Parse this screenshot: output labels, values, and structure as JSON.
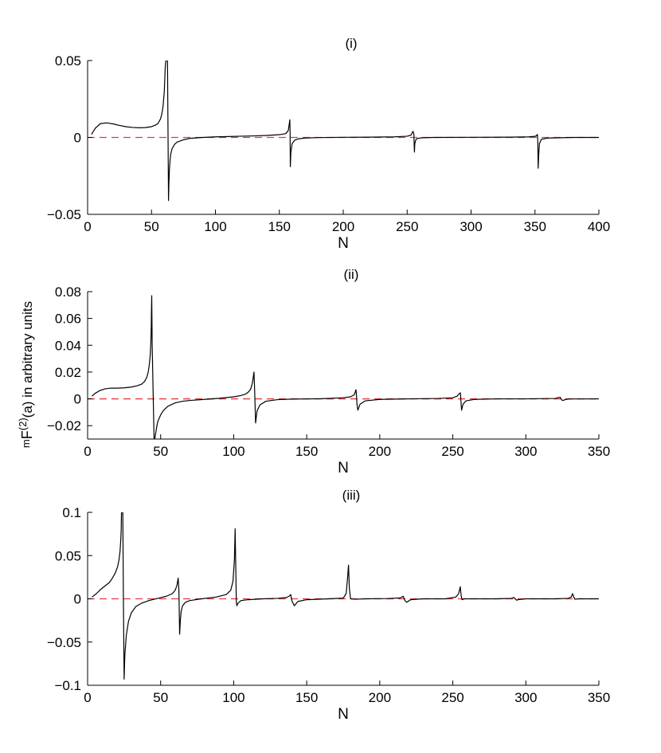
{
  "figure": {
    "ylabel": "mF(2)(a) in arbitrary units",
    "ylabel_parts": {
      "pre": "m",
      "main": "F",
      "sup": "(2)",
      "post": "(a) in arbitrary units"
    }
  },
  "chart_data": [
    {
      "type": "line",
      "title": "(i)",
      "xlabel": "N",
      "ylabel": "",
      "xlim": [
        0,
        400
      ],
      "ylim": [
        -0.05,
        0.05
      ],
      "xticks": [
        0,
        50,
        100,
        150,
        200,
        250,
        300,
        350,
        400
      ],
      "yticks": [
        -0.05,
        0,
        0.05
      ],
      "xtick_labels": [
        "0",
        "50",
        "100",
        "150",
        "200",
        "250",
        "300",
        "350",
        "400"
      ],
      "ytick_labels": [
        "−0.05",
        "0",
        "0.05"
      ],
      "grid": false,
      "series": [
        {
          "color": "#000000",
          "style": "solid",
          "x": [
            3,
            6,
            10,
            15,
            20,
            25,
            30,
            35,
            40,
            45,
            50,
            53,
            55,
            57,
            58,
            59,
            60,
            60.7,
            61.2,
            61.6,
            62.0,
            62.5,
            63.3,
            63.6,
            64,
            64.5,
            65,
            66,
            68,
            70,
            75,
            80,
            90,
            100,
            110,
            120,
            130,
            140,
            150,
            155,
            157,
            157.8,
            158.2,
            158.4,
            158.6,
            159,
            160,
            162,
            165,
            170,
            180,
            200,
            220,
            240,
            250,
            253,
            254.6,
            255.3,
            255.5,
            255.7,
            256,
            256.8,
            258,
            262,
            270,
            300,
            330,
            345,
            350,
            351.3,
            351.9,
            352.2,
            352.5,
            352.9,
            353.5,
            355,
            360,
            380,
            400
          ],
          "y": [
            0.002,
            0.006,
            0.009,
            0.0095,
            0.0088,
            0.0078,
            0.007,
            0.0065,
            0.0063,
            0.0064,
            0.007,
            0.008,
            0.009,
            0.012,
            0.015,
            0.02,
            0.03,
            0.045,
            0.05,
            0.05,
            0.05,
            0.05,
            -0.041,
            -0.03,
            -0.021,
            -0.015,
            -0.011,
            -0.0075,
            -0.0045,
            -0.003,
            -0.0015,
            -0.0006,
            0,
            0.0004,
            0.0006,
            0.0008,
            0.001,
            0.0013,
            0.0018,
            0.0025,
            0.0045,
            0.009,
            0.0115,
            0.004,
            -0.019,
            -0.01,
            -0.004,
            -0.0018,
            -0.0009,
            -0.0004,
            -0.0001,
            0.0001,
            0.0002,
            0.0004,
            0.0008,
            0.0015,
            0.004,
            0.002,
            -0.005,
            -0.0095,
            -0.004,
            -0.0015,
            -0.0006,
            -0.0002,
            0,
            0.0001,
            0.0002,
            0.0004,
            0.0007,
            0.0012,
            0.002,
            -0.002,
            -0.02,
            -0.012,
            -0.004,
            -0.0012,
            -0.0004,
            0,
            0
          ]
        },
        {
          "color": "#e8383d",
          "style": "dashed",
          "x": [
            0,
            400
          ],
          "y": [
            0,
            0
          ]
        }
      ]
    },
    {
      "type": "line",
      "title": "(ii)",
      "xlabel": "N",
      "ylabel": "",
      "xlim": [
        0,
        350
      ],
      "ylim": [
        -0.03,
        0.08
      ],
      "xticks": [
        0,
        50,
        100,
        150,
        200,
        250,
        300,
        350
      ],
      "yticks": [
        -0.02,
        0,
        0.02,
        0.04,
        0.06,
        0.08
      ],
      "xtick_labels": [
        "0",
        "50",
        "100",
        "150",
        "200",
        "250",
        "300",
        "350"
      ],
      "ytick_labels": [
        "−0.02",
        "0",
        "0.02",
        "0.04",
        "0.06",
        "0.08"
      ],
      "grid": false,
      "series": [
        {
          "color": "#000000",
          "style": "solid",
          "x": [
            3,
            5,
            8,
            12,
            16,
            20,
            25,
            30,
            34,
            37,
            39,
            40.5,
            41.5,
            42.3,
            42.9,
            43.3,
            43.6,
            43.7,
            43.9,
            44.2,
            45.5,
            46,
            47,
            48,
            50,
            52,
            55,
            60,
            65,
            70,
            80,
            90,
            100,
            105,
            108,
            110,
            111.5,
            112.4,
            113,
            113.5,
            113.9,
            114.3,
            115,
            116,
            118,
            122,
            130,
            140,
            160,
            175,
            180,
            182.5,
            183.3,
            183.7,
            184,
            184.4,
            185,
            186.5,
            190,
            200,
            220,
            240,
            250,
            253,
            254.5,
            255.2,
            255.6,
            256,
            257,
            259,
            265,
            280,
            300,
            320,
            322,
            323.5,
            324.5,
            325.5,
            327,
            330,
            350
          ],
          "y": [
            0.002,
            0.004,
            0.006,
            0.0075,
            0.008,
            0.008,
            0.0082,
            0.0088,
            0.0098,
            0.011,
            0.013,
            0.016,
            0.02,
            0.026,
            0.033,
            0.042,
            0.055,
            0.065,
            0.077,
            0.04,
            -0.03,
            -0.03,
            -0.023,
            -0.017,
            -0.012,
            -0.0085,
            -0.0055,
            -0.003,
            -0.0018,
            -0.0012,
            -0.0004,
            0.0004,
            0.0015,
            0.0025,
            0.0035,
            0.005,
            0.007,
            0.01,
            0.013,
            0.017,
            0.02,
            0.008,
            -0.018,
            -0.009,
            -0.0045,
            -0.0018,
            -0.0006,
            -0.0002,
            0.0001,
            0.0008,
            0.0015,
            0.003,
            0.0055,
            0.0068,
            0.0035,
            -0.004,
            -0.0085,
            -0.004,
            -0.0015,
            -0.0004,
            0,
            0.0003,
            0.0008,
            0.002,
            0.004,
            0.0045,
            -0.002,
            -0.0085,
            -0.004,
            -0.0015,
            -0.0004,
            0,
            0,
            0.0003,
            0.0009,
            0.0012,
            -0.0008,
            -0.0012,
            -0.0005,
            -0.0001,
            0
          ]
        },
        {
          "color": "#e8383d",
          "style": "dashed",
          "x": [
            0,
            350
          ],
          "y": [
            0,
            0
          ]
        }
      ]
    },
    {
      "type": "line",
      "title": "(iii)",
      "xlabel": "N",
      "ylabel": "",
      "xlim": [
        0,
        350
      ],
      "ylim": [
        -0.1,
        0.1
      ],
      "xticks": [
        0,
        50,
        100,
        150,
        200,
        250,
        300,
        350
      ],
      "yticks": [
        -0.1,
        -0.05,
        0,
        0.05,
        0.1
      ],
      "xtick_labels": [
        "0",
        "50",
        "100",
        "150",
        "200",
        "250",
        "300",
        "350"
      ],
      "ytick_labels": [
        "−0.1",
        "−0.05",
        "0",
        "0.05",
        "0.1"
      ],
      "grid": false,
      "series": [
        {
          "color": "#000000",
          "style": "solid",
          "x": [
            3,
            6,
            9,
            12,
            15,
            17,
            19,
            20.5,
            21.5,
            22.2,
            22.7,
            23,
            23.2,
            23.5,
            23.8,
            24.1,
            24.5,
            25,
            25.5,
            26.5,
            28,
            30,
            33,
            37,
            42,
            48,
            54,
            58,
            60,
            61.2,
            62,
            62.5,
            63,
            63.5,
            64,
            65,
            67,
            70,
            78,
            88,
            95,
            98,
            99.5,
            100.5,
            101,
            101.4,
            101.8,
            102.2,
            103,
            105,
            110,
            120,
            130,
            136,
            138,
            139,
            140,
            141.5,
            144,
            150,
            165,
            175,
            177,
            178,
            178.6,
            179.2,
            180,
            183,
            190,
            205,
            214,
            216,
            217.2,
            218.5,
            221,
            230,
            245,
            252,
            254,
            255.1,
            255.7,
            256.3,
            258,
            265,
            280,
            290,
            292,
            293.5,
            295,
            300,
            320,
            329,
            331,
            332,
            332.8,
            333.6,
            336,
            345,
            350
          ],
          "y": [
            0.002,
            0.006,
            0.011,
            0.015,
            0.019,
            0.024,
            0.03,
            0.037,
            0.045,
            0.055,
            0.068,
            0.08,
            0.1,
            0.1,
            0.1,
            0.1,
            0.0,
            -0.093,
            -0.065,
            -0.042,
            -0.026,
            -0.016,
            -0.009,
            -0.005,
            -0.002,
            0.0005,
            0.003,
            0.006,
            0.01,
            0.016,
            0.024,
            0.01,
            -0.041,
            -0.025,
            -0.015,
            -0.008,
            -0.004,
            -0.002,
            0,
            0.002,
            0.005,
            0.01,
            0.02,
            0.045,
            0.081,
            0.04,
            -0.004,
            -0.008,
            -0.005,
            -0.002,
            -0.001,
            0,
            0.0005,
            0.0015,
            0.003,
            0.005,
            -0.003,
            -0.008,
            -0.003,
            -0.001,
            0,
            0.0008,
            0.006,
            0.025,
            0.039,
            0.012,
            0,
            -0.0005,
            0,
            0.0003,
            0.001,
            0.003,
            -0.002,
            -0.004,
            -0.001,
            0,
            0,
            0.002,
            0.006,
            0.014,
            0.004,
            -0.001,
            0,
            0,
            0,
            0.0005,
            0.0015,
            -0.0015,
            -0.001,
            0,
            0,
            0.0005,
            0.002,
            0.006,
            0.002,
            -0.0005,
            0,
            0,
            0
          ]
        },
        {
          "color": "#e8383d",
          "style": "dashed",
          "x": [
            0,
            350
          ],
          "y": [
            0,
            0
          ]
        }
      ]
    }
  ]
}
